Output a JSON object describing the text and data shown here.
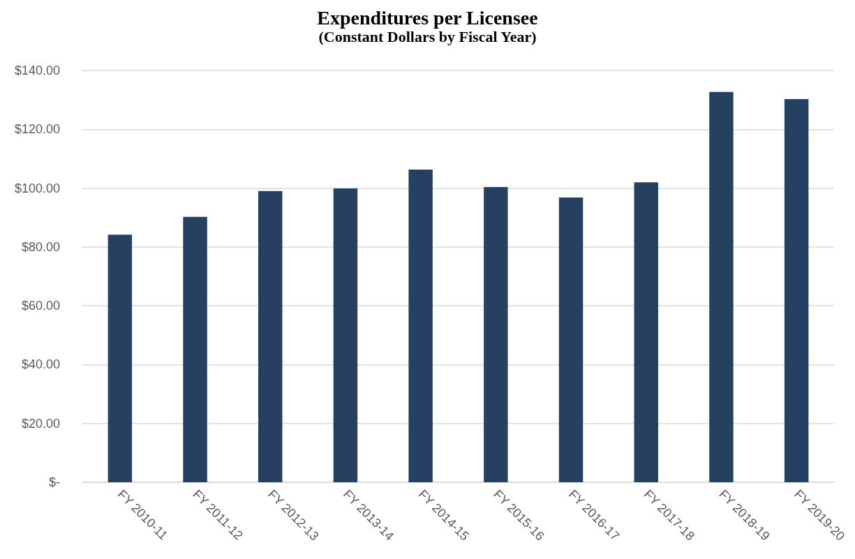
{
  "chart_data": {
    "type": "bar",
    "title": "Expenditures per Licensee",
    "subtitle": "(Constant Dollars by Fiscal Year)",
    "categories": [
      "FY 2010-11",
      "FY 2011-12",
      "FY 2012-13",
      "FY 2013-14",
      "FY 2014-15",
      "FY 2015-16",
      "FY 2016-17",
      "FY 2017-18",
      "FY 2018-19",
      "FY 2019-20"
    ],
    "values": [
      84.2,
      90.2,
      99.0,
      99.9,
      106.3,
      100.4,
      96.8,
      102.0,
      132.7,
      130.3
    ],
    "color": "#264061",
    "ylim": [
      0,
      140
    ],
    "yticks": [
      {
        "value": 0,
        "label": "$-"
      },
      {
        "value": 20,
        "label": "$20.00"
      },
      {
        "value": 40,
        "label": "$40.00"
      },
      {
        "value": 60,
        "label": "$60.00"
      },
      {
        "value": 80,
        "label": "$80.00"
      },
      {
        "value": 100,
        "label": "$100.00"
      },
      {
        "value": 120,
        "label": "$120.00"
      },
      {
        "value": 140,
        "label": "$140.00"
      }
    ],
    "grid": "y"
  }
}
